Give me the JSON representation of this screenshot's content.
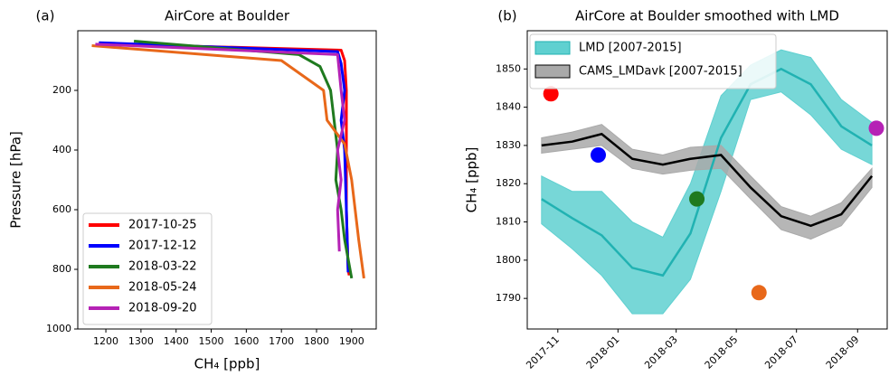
{
  "chart_data": [
    {
      "type": "profile",
      "label": "(a)",
      "title": "AirCore at Boulder",
      "xlabel": "CH₄ [ppb]",
      "ylabel": "Pressure [hPa]",
      "xlim": [
        1120,
        1970
      ],
      "ylim": [
        1000,
        0
      ],
      "xticks": [
        1200,
        1300,
        1400,
        1500,
        1600,
        1700,
        1800,
        1900
      ],
      "yticks": [
        200,
        400,
        600,
        800,
        1000
      ],
      "legend": "lower left",
      "series": [
        {
          "name": "2017-10-25",
          "color": "#ff0000",
          "x": [
            1230,
            1870,
            1880,
            1885,
            1885,
            1885,
            1890,
            1893
          ],
          "values": [
            45,
            65,
            100,
            200,
            400,
            600,
            800,
            820
          ]
        },
        {
          "name": "2017-12-12",
          "color": "#0000ff",
          "x": [
            1180,
            1860,
            1870,
            1880,
            1870,
            1880,
            1885,
            1890
          ],
          "values": [
            40,
            70,
            110,
            200,
            300,
            400,
            600,
            810
          ]
        },
        {
          "name": "2018-03-22",
          "color": "#1f7a1f",
          "x": [
            1280,
            1750,
            1810,
            1840,
            1850,
            1860,
            1855,
            1870,
            1880,
            1900
          ],
          "values": [
            35,
            80,
            120,
            200,
            300,
            400,
            500,
            600,
            700,
            830
          ]
        },
        {
          "name": "2018-05-24",
          "color": "#e8681a",
          "x": [
            1160,
            1700,
            1760,
            1820,
            1830,
            1880,
            1900,
            1910,
            1920,
            1935
          ],
          "values": [
            50,
            100,
            150,
            200,
            300,
            380,
            500,
            600,
            700,
            830
          ]
        },
        {
          "name": "2018-09-20",
          "color": "#b522b5",
          "x": [
            1170,
            1860,
            1870,
            1880,
            1860,
            1870,
            1860,
            1865
          ],
          "values": [
            45,
            80,
            200,
            300,
            400,
            500,
            600,
            740
          ]
        }
      ]
    },
    {
      "type": "line",
      "label": "(b)",
      "title": "AirCore at Boulder smoothed with LMD",
      "ylabel": "CH₄ [ppb]",
      "x": [
        "2017-10",
        "2017-11",
        "2017-12",
        "2018-01",
        "2018-02",
        "2018-03",
        "2018-04",
        "2018-05",
        "2018-06",
        "2018-07",
        "2018-08",
        "2018-09"
      ],
      "xlim": [
        "2017-10",
        "2018-10"
      ],
      "xticks": [
        "2017-11",
        "2018-01",
        "2018-03",
        "2018-05",
        "2018-07",
        "2018-09"
      ],
      "ylim": [
        1782,
        1860
      ],
      "yticks": [
        1790,
        1800,
        1810,
        1820,
        1830,
        1840,
        1850
      ],
      "legend": "upper left",
      "series": [
        {
          "name": "LMD [2007-2015]",
          "color": "#21b2b2",
          "band_color": "#5fd0d0",
          "values": [
            1816,
            1811,
            1806.5,
            1798,
            1796,
            1807,
            1832,
            1846,
            1850,
            1846,
            1835,
            1830
          ],
          "lower": [
            1809.5,
            1803,
            1796,
            1786,
            1786,
            1795,
            1818,
            1842,
            1844,
            1838,
            1829,
            1825
          ],
          "upper": [
            1822,
            1818,
            1818,
            1810,
            1806,
            1820,
            1843,
            1851,
            1855,
            1853,
            1842,
            1836
          ]
        },
        {
          "name": "CAMS_LMDavk [2007-2015]",
          "color": "#000000",
          "band_color": "#a9a9a9",
          "values": [
            1830,
            1831,
            1833,
            1826.5,
            1825,
            1826.5,
            1827.5,
            1819,
            1811.5,
            1809,
            1812,
            1822
          ],
          "lower": [
            1828,
            1829,
            1830,
            1824,
            1822.5,
            1823.5,
            1824,
            1816,
            1808,
            1805.5,
            1809,
            1819
          ],
          "upper": [
            1832,
            1833.5,
            1835.5,
            1829,
            1827.5,
            1829.5,
            1830,
            1822,
            1814,
            1811.5,
            1815,
            1824
          ]
        }
      ],
      "points": {
        "x": [
          "2017-10-25",
          "2017-12-12",
          "2018-03-22",
          "2018-05-24",
          "2018-09-20"
        ],
        "values": [
          1843.5,
          1827.5,
          1816,
          1791.5,
          1834.5
        ],
        "colors": [
          "#ff0000",
          "#0000ff",
          "#1f7a1f",
          "#e8681a",
          "#b522b5"
        ]
      }
    }
  ]
}
